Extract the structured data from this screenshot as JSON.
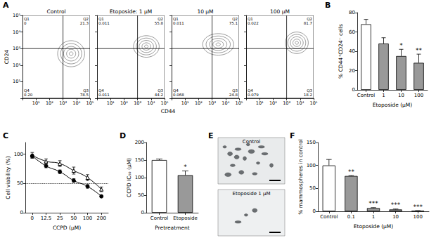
{
  "chart_data": [
    {
      "panel": "A",
      "type": "flow_contour",
      "x_label": "CD44",
      "y_label": "CD24",
      "log": true,
      "xlim": [
        1,
        100000
      ],
      "ylim": [
        1,
        100000
      ],
      "xticks": [
        {
          "value": 10,
          "label": "10¹"
        },
        {
          "value": 100,
          "label": "10²"
        },
        {
          "value": 1000,
          "label": "10³"
        },
        {
          "value": 10000,
          "label": "10⁴"
        },
        {
          "value": 100000,
          "label": "10⁵"
        }
      ],
      "yticks": [
        {
          "value": 10,
          "label": "10¹"
        },
        {
          "value": 100,
          "label": "10²"
        },
        {
          "value": 1000,
          "label": "10³"
        },
        {
          "value": 10000,
          "label": "10⁴"
        },
        {
          "value": 100000,
          "label": "10⁵"
        }
      ],
      "gate": [
        1000,
        1000
      ],
      "plots": [
        {
          "title": "Control",
          "quadrants": [
            {
              "name": "Q1",
              "value": 0
            },
            {
              "name": "Q2",
              "value": 21.3
            },
            {
              "name": "Q3",
              "value": 78.5
            },
            {
              "name": "Q4",
              "value": 0.2,
              "label": "0.20"
            }
          ],
          "population": {
            "x": [
              400,
              40000
            ],
            "y": [
              80,
              3000
            ]
          }
        },
        {
          "title": "Etoposide: 1 μM",
          "quadrants": [
            {
              "name": "Q1",
              "value": 0.011
            },
            {
              "name": "Q2",
              "value": 55.8
            },
            {
              "name": "Q3",
              "value": 44.2
            },
            {
              "name": "Q4",
              "value": 0.011
            }
          ],
          "population": {
            "x": [
              500,
              40000
            ],
            "y": [
              300,
              6000
            ]
          }
        },
        {
          "title": "10 μM",
          "quadrants": [
            {
              "name": "Q1",
              "value": 0.011
            },
            {
              "name": "Q2",
              "value": 75.1
            },
            {
              "name": "Q3",
              "value": 24.8
            },
            {
              "name": "Q4",
              "value": 0.068
            }
          ],
          "population": {
            "x": [
              200,
              40000
            ],
            "y": [
              400,
              8000
            ]
          }
        },
        {
          "title": "100 μM",
          "quadrants": [
            {
              "name": "Q1",
              "value": 0.022
            },
            {
              "name": "Q2",
              "value": 81.7
            },
            {
              "name": "Q3",
              "value": 18.2
            },
            {
              "name": "Q4",
              "value": 0.079
            }
          ],
          "population": {
            "x": [
              800,
              40000
            ],
            "y": [
              500,
              10000
            ]
          }
        }
      ]
    },
    {
      "panel": "B",
      "type": "bar",
      "categories": [
        "Control",
        "1",
        "10",
        "100"
      ],
      "values": [
        68,
        48,
        35,
        28
      ],
      "errors": [
        5,
        6,
        7,
        9
      ],
      "colors": [
        "#ffffff",
        "#999999",
        "#999999",
        "#999999"
      ],
      "ylim": [
        0,
        80
      ],
      "yticks": [
        0,
        20,
        40,
        60,
        80
      ],
      "y_label": "% CD44⁺CD24⁻ cells",
      "x_label": "Etoposide (μM)",
      "significance": [
        null,
        null,
        "*",
        "**"
      ]
    },
    {
      "panel": "C",
      "type": "line",
      "categories": [
        "0",
        "12.5",
        "25",
        "50",
        "100",
        "200"
      ],
      "series": [
        {
          "marker": "triangle_open",
          "color": "#000000",
          "values": [
            98,
            88,
            84,
            72,
            60,
            40
          ],
          "errors": [
            5,
            4,
            5,
            6,
            5,
            4
          ]
        },
        {
          "marker": "circle",
          "color": "#000000",
          "values": [
            97,
            80,
            70,
            55,
            45,
            28
          ],
          "errors": [
            3,
            3,
            3,
            3,
            3,
            2
          ]
        }
      ],
      "ylim": [
        0,
        120
      ],
      "yticks": [
        0,
        50,
        100
      ],
      "hline": 50,
      "y_label": "Cell viability (%)",
      "x_label": "CCPD (μM)"
    },
    {
      "panel": "D",
      "type": "bar",
      "categories": [
        "Control",
        "Etoposide"
      ],
      "values": [
        150,
        107
      ],
      "errors": [
        3,
        12
      ],
      "colors": [
        "#ffffff",
        "#999999"
      ],
      "ylim": [
        0,
        200
      ],
      "yticks": [
        0,
        50,
        100,
        150,
        200
      ],
      "y_label": "CCPD IC₅₀ (μM)",
      "x_label": "Pretreatment",
      "significance": [
        null,
        "*"
      ]
    },
    {
      "panel": "F",
      "type": "bar",
      "categories": [
        "Control",
        "0.1",
        "1",
        "10",
        "100"
      ],
      "values": [
        100,
        77,
        7,
        4,
        1
      ],
      "errors": [
        13,
        1,
        1,
        1,
        0.5
      ],
      "colors": [
        "#ffffff",
        "#999999",
        "#999999",
        "#999999",
        "#999999"
      ],
      "ylim": [
        0,
        150
      ],
      "yticks": [
        0,
        50,
        100,
        150
      ],
      "y_label": "% mammospheres in control",
      "x_label": "Etoposide (μM)",
      "significance": [
        null,
        "**",
        "***",
        "***",
        "***"
      ]
    }
  ],
  "image_panel": {
    "panel": "E",
    "images": [
      {
        "caption": "Control"
      },
      {
        "caption": "Etoposide 1 μM"
      }
    ]
  }
}
